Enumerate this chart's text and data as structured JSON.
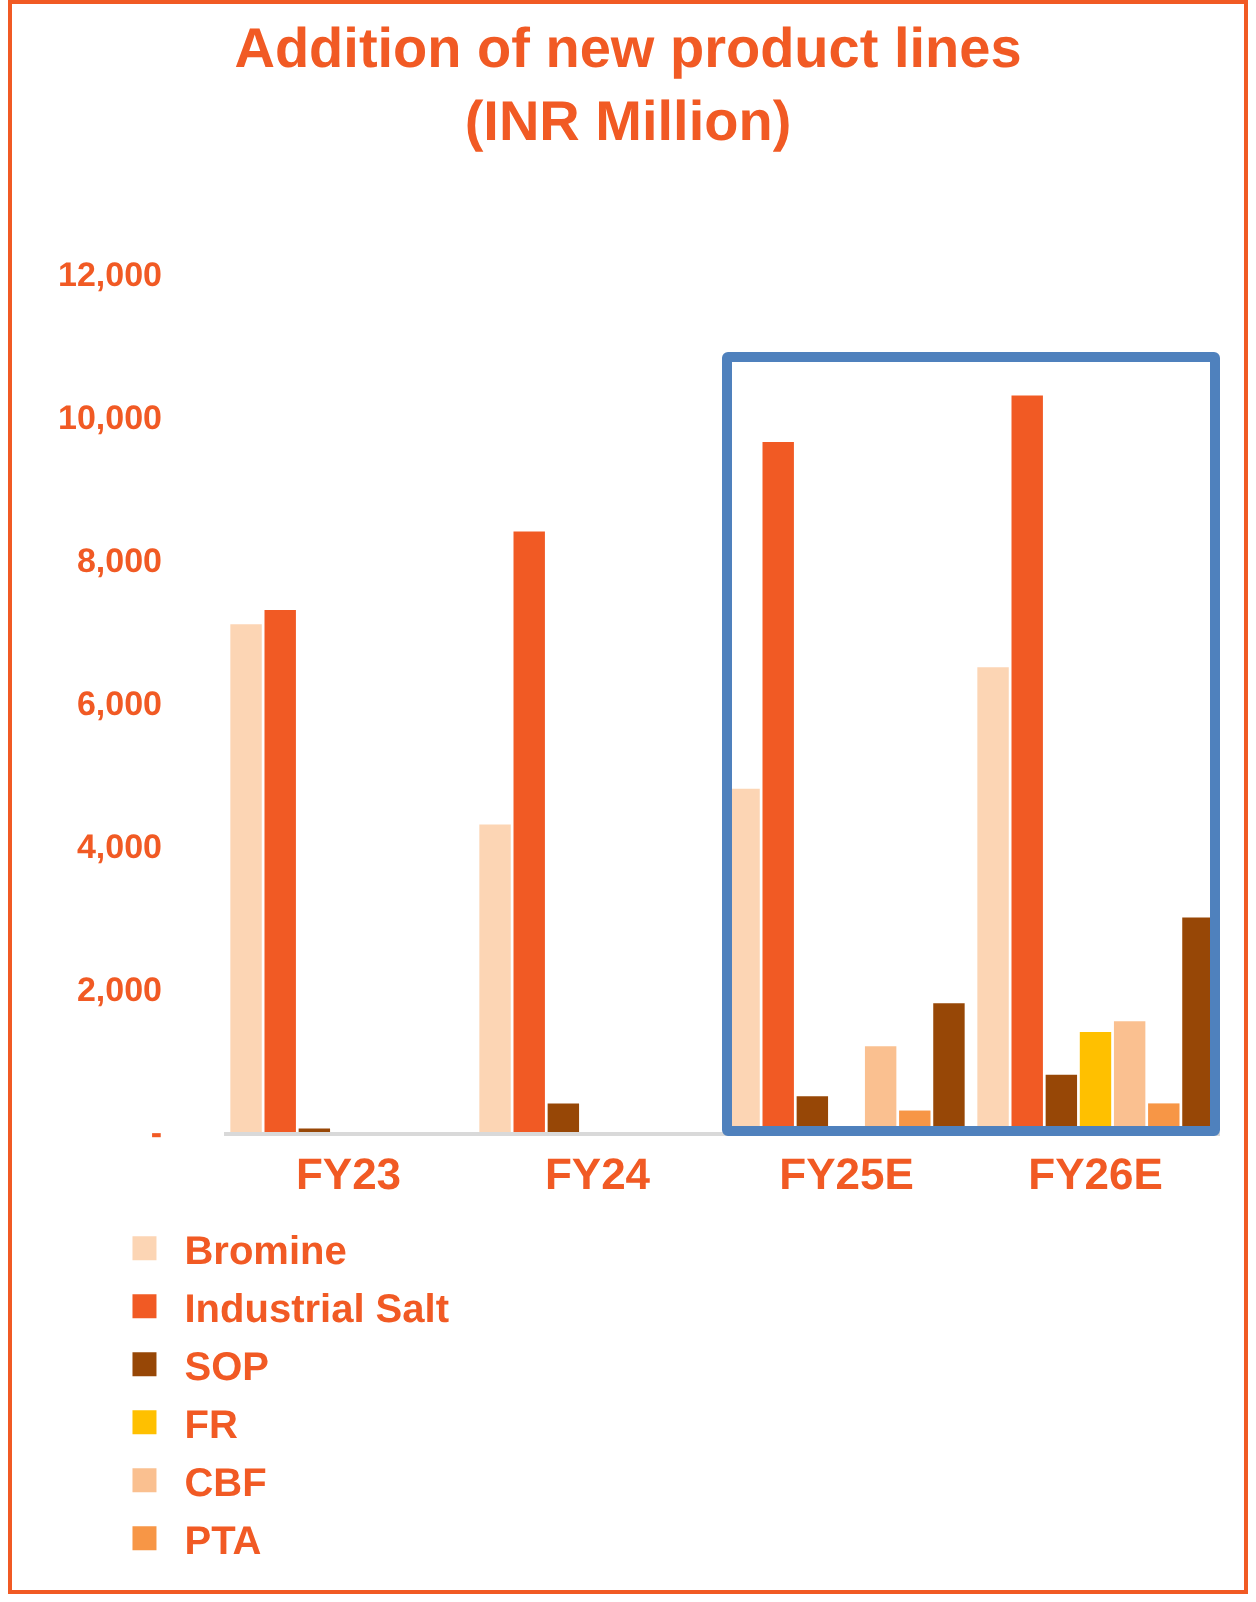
{
  "chart_data": {
    "type": "bar",
    "title": "Addition of new product lines\n(INR Million)",
    "categories": [
      "FY23",
      "FY24",
      "FY25E",
      "FY26E"
    ],
    "series": [
      {
        "name": "Bromine",
        "color": "#fcd5b4",
        "values": [
          7100,
          4300,
          4800,
          6500
        ]
      },
      {
        "name": "Industrial Salt",
        "color": "#f15a24",
        "values": [
          7300,
          8400,
          9650,
          10300
        ]
      },
      {
        "name": "SOP",
        "color": "#974706",
        "values": [
          50,
          400,
          500,
          800
        ]
      },
      {
        "name": "FR",
        "color": "#ffc000",
        "values": [
          null,
          null,
          null,
          1400
        ]
      },
      {
        "name": "CBF",
        "color": "#fac090",
        "values": [
          null,
          null,
          1200,
          1550
        ]
      },
      {
        "name": "PTA",
        "color": "#f79646",
        "values": [
          null,
          null,
          300,
          400
        ]
      },
      {
        "color": "#974706",
        "values": [
          null,
          null,
          1800,
          3000
        ]
      }
    ],
    "ylim": [
      0,
      12000
    ],
    "yticks": [
      {
        "value": 0,
        "label": "-"
      },
      {
        "value": 2000,
        "label": "2,000"
      },
      {
        "value": 4000,
        "label": "4,000"
      },
      {
        "value": 6000,
        "label": "6,000"
      },
      {
        "value": 8000,
        "label": "8,000"
      },
      {
        "value": 10000,
        "label": "10,000"
      },
      {
        "value": 12000,
        "label": "12,000"
      }
    ],
    "grid": false,
    "legend": "bottom"
  }
}
